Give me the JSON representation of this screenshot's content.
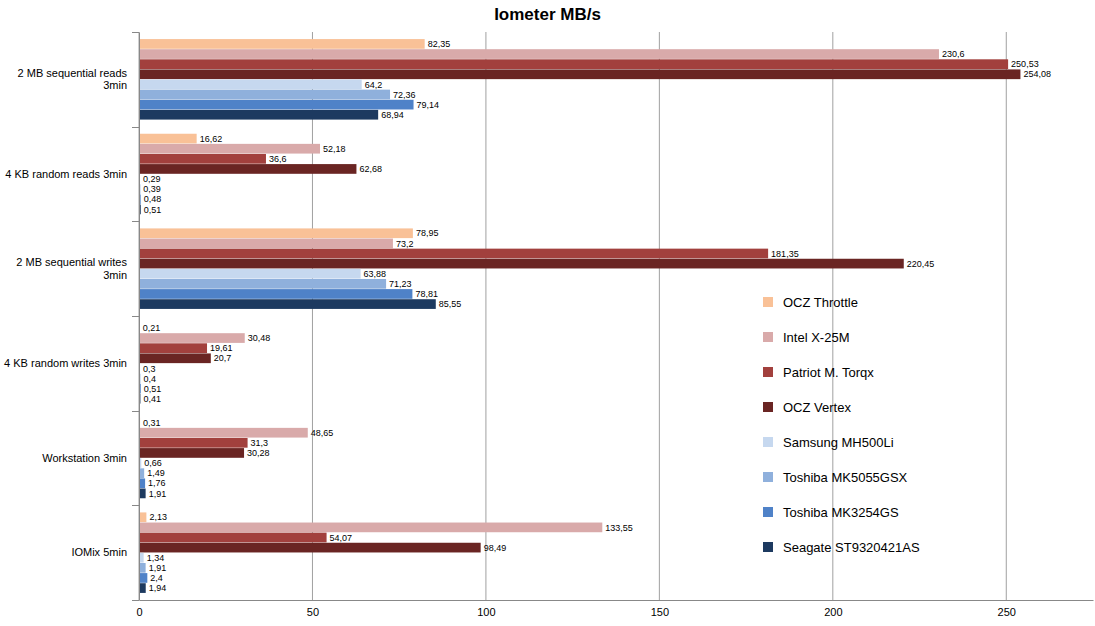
{
  "chart_data": {
    "type": "bar",
    "title": "Iometer MB/s",
    "orientation": "horizontal",
    "categories": [
      "2 MB sequential reads 3min",
      "4 KB random reads 3min",
      "2 MB sequential writes 3min",
      "4 KB random writes 3min",
      "Workstation 3min",
      "IOMix 5min"
    ],
    "series": [
      {
        "name": "OCZ Throttle",
        "color": "#f9c197",
        "values": [
          82.35,
          16.62,
          78.95,
          0.21,
          0.31,
          2.13
        ],
        "value_labels": [
          "82,35",
          "16,62",
          "78,95",
          "0,21",
          "0,31",
          "2,13"
        ]
      },
      {
        "name": "Intel X-25M",
        "color": "#d9aaaa",
        "values": [
          230.6,
          52.18,
          73.2,
          30.48,
          48.65,
          133.55
        ],
        "value_labels": [
          "230,6",
          "52,18",
          "73,2",
          "30,48",
          "48,65",
          "133,55"
        ]
      },
      {
        "name": "Patriot M. Torqx",
        "color": "#a2403d",
        "values": [
          250.53,
          36.6,
          181.35,
          19.61,
          31.3,
          54.07
        ],
        "value_labels": [
          "250,53",
          "36,6",
          "181,35",
          "19,61",
          "31,3",
          "54,07"
        ]
      },
      {
        "name": "OCZ Vertex",
        "color": "#6a2523",
        "values": [
          254.08,
          62.68,
          220.45,
          20.7,
          30.28,
          98.49
        ],
        "value_labels": [
          "254,08",
          "62,68",
          "220,45",
          "20,7",
          "30,28",
          "98,49"
        ]
      },
      {
        "name": "Samsung MH500Li",
        "color": "#c6d8ef",
        "values": [
          64.2,
          0.29,
          63.88,
          0.3,
          0.66,
          1.34
        ],
        "value_labels": [
          "64,2",
          "0,29",
          "63,88",
          "0,3",
          "0,66",
          "1,34"
        ]
      },
      {
        "name": "Toshiba MK5055GSX",
        "color": "#8fb0dc",
        "values": [
          72.36,
          0.39,
          71.23,
          0.4,
          1.49,
          1.91
        ],
        "value_labels": [
          "72,36",
          "0,39",
          "71,23",
          "0,4",
          "1,49",
          "1,91"
        ]
      },
      {
        "name": "Toshiba MK3254GS",
        "color": "#4f82c8",
        "values": [
          79.14,
          0.48,
          78.81,
          0.51,
          1.76,
          2.4
        ],
        "value_labels": [
          "79,14",
          "0,48",
          "78,81",
          "0,51",
          "1,76",
          "2,4"
        ]
      },
      {
        "name": "Seagate ST9320421AS",
        "color": "#1d3a60",
        "values": [
          68.94,
          0.51,
          85.55,
          0.41,
          1.91,
          1.94
        ],
        "value_labels": [
          "68,94",
          "0,51",
          "85,55",
          "0,41",
          "1,91",
          "1,94"
        ]
      }
    ],
    "xlim": [
      0,
      275
    ],
    "xticks": [
      0,
      50,
      100,
      150,
      200,
      250
    ],
    "grid": true,
    "legend": "right",
    "data_labels": true
  }
}
